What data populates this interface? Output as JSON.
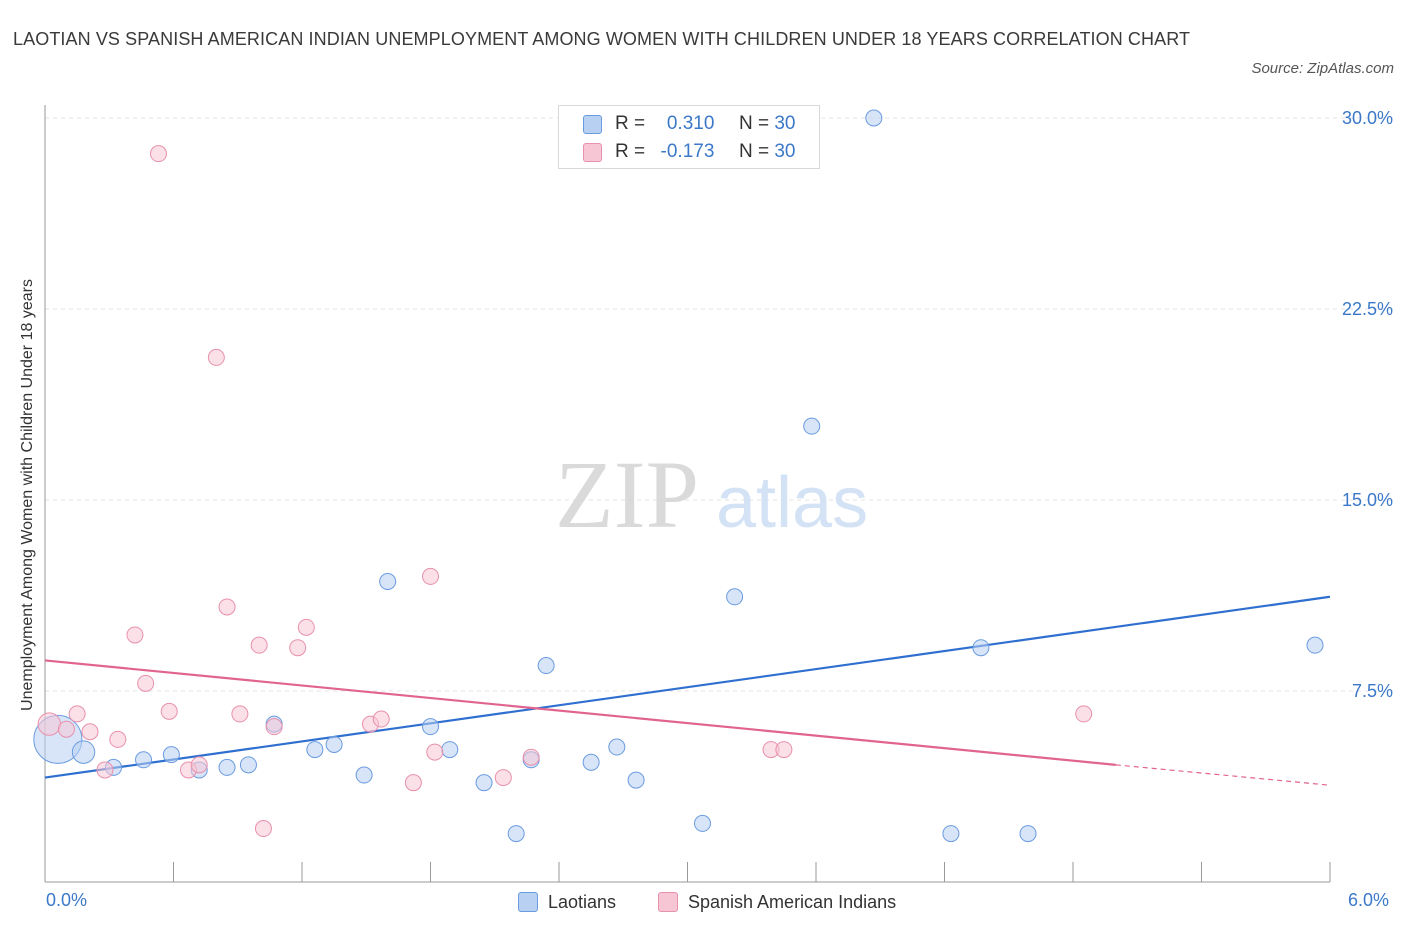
{
  "title": "LAOTIAN VS SPANISH AMERICAN INDIAN UNEMPLOYMENT AMONG WOMEN WITH CHILDREN UNDER 18 YEARS CORRELATION CHART",
  "source": "Source: ZipAtlas.com",
  "watermark": {
    "zip": "ZIP",
    "atlas": "atlas"
  },
  "legend": {
    "r_label": "R =",
    "n_label": "N =",
    "series": [
      {
        "name": "Laotians",
        "r": "0.310",
        "n": "30"
      },
      {
        "name": "Spanish American Indians",
        "r": "-0.173",
        "n": "30"
      }
    ]
  },
  "colors": {
    "blue_fill": "#b8d0f2",
    "blue_stroke": "#6a9be0",
    "blue_line": "#2f6fcf",
    "pink_fill": "#f7c6d5",
    "pink_stroke": "#e890ac",
    "pink_line": "#e0648e",
    "axis_text": "#3b78c9",
    "grid": "#e3e3e3"
  },
  "chart_data": {
    "type": "scatter",
    "title": "LAOTIAN VS SPANISH AMERICAN INDIAN UNEMPLOYMENT AMONG WOMEN WITH CHILDREN UNDER 18 YEARS CORRELATION CHART",
    "xlabel": "",
    "ylabel": "Unemployment Among Women with Children Under 18 years",
    "xlim": [
      0,
      6
    ],
    "ylim": [
      0,
      30
    ],
    "x_tick_labels": [
      "0.0%",
      "6.0%"
    ],
    "y_ticks": [
      7.5,
      15.0,
      22.5,
      30.0
    ],
    "y_tick_labels": [
      "7.5%",
      "15.0%",
      "22.5%",
      "30.0%"
    ],
    "series": [
      {
        "name": "Laotians",
        "color": "#6a9be0",
        "points": [
          [
            0.06,
            5.6,
            3
          ],
          [
            0.18,
            5.1,
            1.4
          ],
          [
            0.32,
            4.5,
            1
          ],
          [
            0.46,
            4.8,
            1
          ],
          [
            0.59,
            5.0,
            1
          ],
          [
            0.72,
            4.4,
            1
          ],
          [
            0.85,
            4.5,
            1
          ],
          [
            0.95,
            4.6,
            1
          ],
          [
            1.07,
            6.2,
            1
          ],
          [
            1.26,
            5.2,
            1
          ],
          [
            1.35,
            5.4,
            1
          ],
          [
            1.49,
            4.2,
            1
          ],
          [
            1.6,
            11.8,
            1
          ],
          [
            1.8,
            6.1,
            1
          ],
          [
            1.89,
            5.2,
            1
          ],
          [
            2.05,
            3.9,
            1
          ],
          [
            2.2,
            1.9,
            1
          ],
          [
            2.27,
            4.8,
            1
          ],
          [
            2.34,
            8.5,
            1
          ],
          [
            2.55,
            4.7,
            1
          ],
          [
            2.67,
            5.3,
            1
          ],
          [
            2.76,
            4.0,
            1
          ],
          [
            3.07,
            2.3,
            1
          ],
          [
            3.22,
            11.2,
            1
          ],
          [
            3.58,
            17.9,
            1
          ],
          [
            3.87,
            30.0,
            1
          ],
          [
            4.23,
            1.9,
            1
          ],
          [
            4.37,
            9.2,
            1
          ],
          [
            4.59,
            1.9,
            1
          ],
          [
            5.93,
            9.3,
            1
          ]
        ],
        "trend": {
          "x": [
            0,
            6.0
          ],
          "y": [
            4.1,
            11.2
          ]
        }
      },
      {
        "name": "Spanish American Indians",
        "color": "#e890ac",
        "points": [
          [
            0.02,
            6.2,
            1.4
          ],
          [
            0.1,
            6.0,
            1
          ],
          [
            0.15,
            6.6,
            1
          ],
          [
            0.21,
            5.9,
            1
          ],
          [
            0.28,
            4.4,
            1
          ],
          [
            0.34,
            5.6,
            1
          ],
          [
            0.42,
            9.7,
            1
          ],
          [
            0.47,
            7.8,
            1
          ],
          [
            0.53,
            28.6,
            1
          ],
          [
            0.58,
            6.7,
            1
          ],
          [
            0.67,
            4.4,
            1
          ],
          [
            0.72,
            4.6,
            1
          ],
          [
            0.8,
            20.6,
            1
          ],
          [
            0.85,
            10.8,
            1
          ],
          [
            0.91,
            6.6,
            1
          ],
          [
            1.0,
            9.3,
            1
          ],
          [
            1.02,
            2.1,
            1
          ],
          [
            1.07,
            6.1,
            1
          ],
          [
            1.18,
            9.2,
            1
          ],
          [
            1.22,
            10.0,
            1
          ],
          [
            1.52,
            6.2,
            1
          ],
          [
            1.57,
            6.4,
            1
          ],
          [
            1.72,
            3.9,
            1
          ],
          [
            1.8,
            12.0,
            1
          ],
          [
            1.82,
            5.1,
            1
          ],
          [
            2.14,
            4.1,
            1
          ],
          [
            2.27,
            4.9,
            1
          ],
          [
            3.39,
            5.2,
            1
          ],
          [
            3.45,
            5.2,
            1
          ],
          [
            4.85,
            6.6,
            1
          ]
        ],
        "trend": {
          "x": [
            0,
            5.0
          ],
          "y": [
            8.7,
            4.6
          ],
          "dashed_x": [
            5.0,
            6.0
          ],
          "dashed_y": [
            4.6,
            3.8
          ]
        }
      }
    ]
  }
}
